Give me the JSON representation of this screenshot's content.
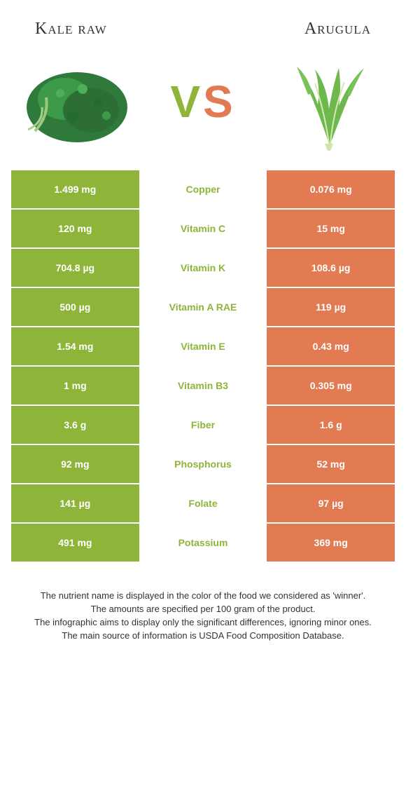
{
  "header": {
    "left_title": "Kale raw",
    "right_title": "Arugula"
  },
  "vs": {
    "v": "V",
    "s": "S"
  },
  "colors": {
    "left_bg": "#8fb43a",
    "right_bg": "#e27b52",
    "row_gap": "#ffffff",
    "mid_winner_left": "#8fb43a",
    "mid_winner_right": "#e27b52"
  },
  "rows": [
    {
      "left": "1.499 mg",
      "mid": "Copper",
      "right": "0.076 mg",
      "winner": "left"
    },
    {
      "left": "120 mg",
      "mid": "Vitamin C",
      "right": "15 mg",
      "winner": "left"
    },
    {
      "left": "704.8 µg",
      "mid": "Vitamin K",
      "right": "108.6 µg",
      "winner": "left"
    },
    {
      "left": "500 µg",
      "mid": "Vitamin A RAE",
      "right": "119 µg",
      "winner": "left"
    },
    {
      "left": "1.54 mg",
      "mid": "Vitamin E",
      "right": "0.43 mg",
      "winner": "left"
    },
    {
      "left": "1 mg",
      "mid": "Vitamin B3",
      "right": "0.305 mg",
      "winner": "left"
    },
    {
      "left": "3.6 g",
      "mid": "Fiber",
      "right": "1.6 g",
      "winner": "left"
    },
    {
      "left": "92 mg",
      "mid": "Phosphorus",
      "right": "52 mg",
      "winner": "left"
    },
    {
      "left": "141 µg",
      "mid": "Folate",
      "right": "97 µg",
      "winner": "left"
    },
    {
      "left": "491 mg",
      "mid": "Potassium",
      "right": "369 mg",
      "winner": "left"
    }
  ],
  "footer": {
    "l1": "The nutrient name is displayed in the color of the food we considered as 'winner'.",
    "l2": "The amounts are specified per 100 gram of the product.",
    "l3": "The infographic aims to display only the significant differences, ignoring minor ones.",
    "l4": "The main source of information is USDA Food Composition Database."
  }
}
